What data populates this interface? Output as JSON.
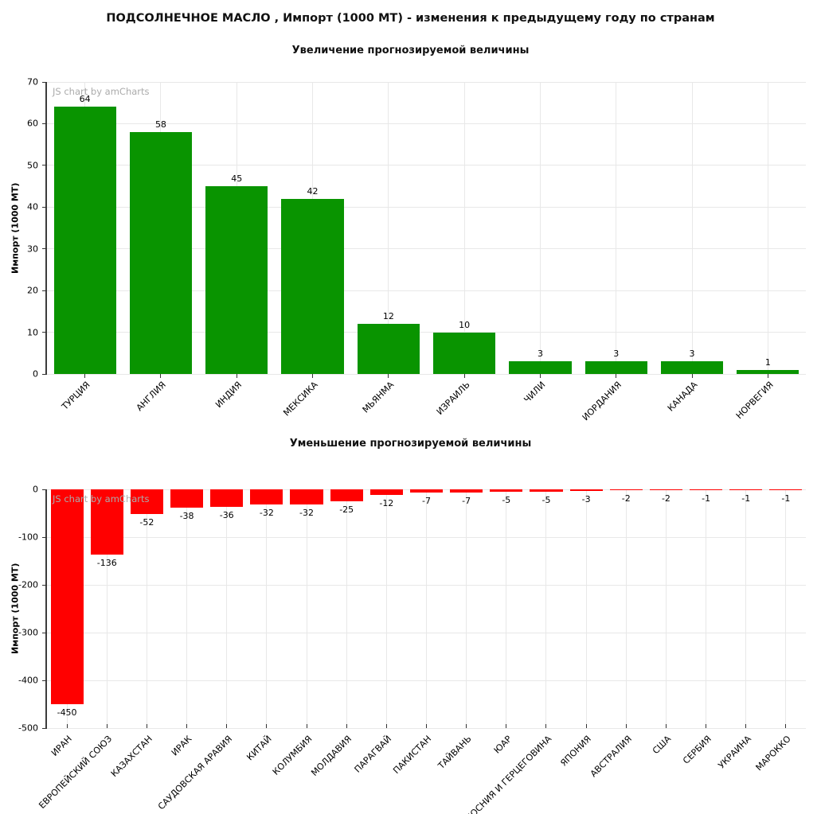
{
  "page": {
    "title": "ПОДСОЛНЕЧНОЕ МАСЛО , Импорт (1000 MT) - изменения к предыдущему году по странам"
  },
  "watermark": "JS chart by amCharts",
  "colors": {
    "increase_bar": "#099400",
    "decrease_bar": "#ff0000",
    "grid": "#e8e8e8",
    "axis": "#3c3c3c",
    "text": "#000000",
    "watermark": "#ababab"
  },
  "chart_data": [
    {
      "type": "bar",
      "title": "Увеличение прогнозируемой величины",
      "xlabel": "",
      "ylabel": "Импорт (1000 МТ)",
      "categories": [
        "ТУРЦИЯ",
        "АНГЛИЯ",
        "ИНДИЯ",
        "МЕКСИКА",
        "МЬЯНМА",
        "ИЗРАИЛЬ",
        "ЧИЛИ",
        "ИОРДАНИЯ",
        "КАНАДА",
        "НОРВЕГИЯ"
      ],
      "values": [
        64,
        58,
        45,
        42,
        12,
        10,
        3,
        3,
        3,
        1
      ],
      "bar_color": "#099400",
      "ylim": [
        0,
        70
      ],
      "yticks": [
        0,
        10,
        20,
        30,
        40,
        50,
        60,
        70
      ],
      "grid": true,
      "legend": false,
      "watermark": "JS chart by amCharts"
    },
    {
      "type": "bar",
      "title": "Уменьшение прогнозируемой величины",
      "xlabel": "",
      "ylabel": "Импорт (1000 МТ)",
      "categories": [
        "ИРАН",
        "ЕВРОПЕЙСКИЙ СОЮЗ",
        "КАЗАХСТАН",
        "ИРАК",
        "САУДОВСКАЯ АРАВИЯ",
        "КИТАЙ",
        "КОЛУМБИЯ",
        "МОЛДАВИЯ",
        "ПАРАГВАЙ",
        "ПАКИСТАН",
        "ТАЙВАНЬ",
        "ЮАР",
        "БОСНИЯ И ГЕРЦЕГОВИНА",
        "ЯПОНИЯ",
        "АВСТРАЛИЯ",
        "США",
        "СЕРБИЯ",
        "УКРАИНА",
        "МАРОККО"
      ],
      "values": [
        -450,
        -136,
        -52,
        -38,
        -36,
        -32,
        -32,
        -25,
        -12,
        -7,
        -7,
        -5,
        -5,
        -3,
        -2,
        -2,
        -1,
        -1,
        -1
      ],
      "bar_color": "#ff0000",
      "ylim": [
        -500,
        0
      ],
      "yticks": [
        0,
        -100,
        -200,
        -300,
        -400,
        -500
      ],
      "grid": true,
      "legend": false,
      "watermark": "JS chart by amCharts"
    }
  ]
}
